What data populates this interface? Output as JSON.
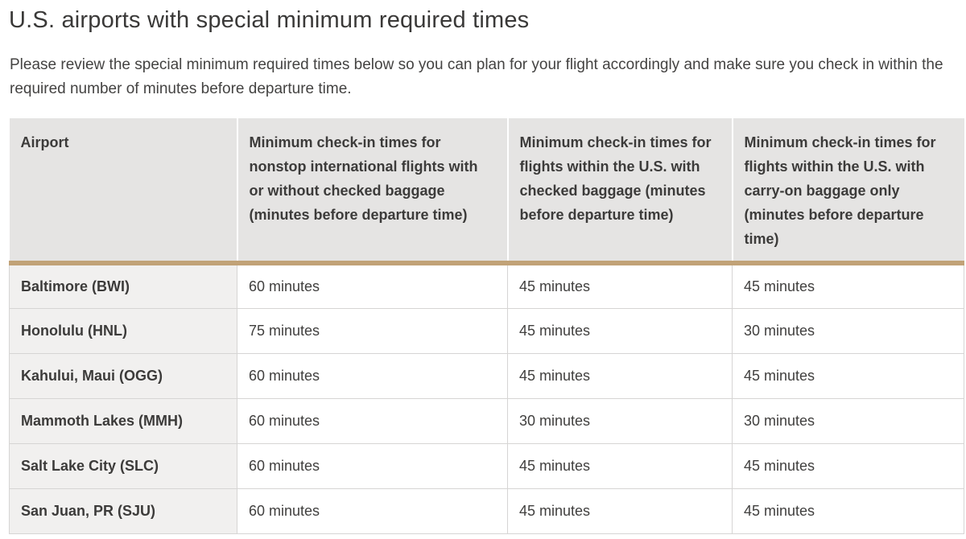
{
  "page": {
    "title": "U.S. airports with special minimum required times",
    "intro": "Please review the special minimum required times below so you can plan for your flight accordingly and make sure you check in within the required number of minutes before departure time."
  },
  "colors": {
    "header_bg": "#e5e4e3",
    "airport_column_bg": "#f1f0ef",
    "accent_bar": "#c1a277",
    "cell_border": "#d6d5d4",
    "text": "#3d3c3c"
  },
  "table": {
    "columns": [
      "Airport",
      "Minimum check-in times for nonstop international flights with or without checked baggage (minutes before departure time)",
      "Minimum check-in times for flights within the U.S. with checked baggage (minutes before departure time)",
      "Minimum check-in times for flights within the U.S. with carry-on baggage only (minutes before departure time)"
    ],
    "rows": [
      {
        "airport": "Baltimore (BWI)",
        "international": "60 minutes",
        "domestic_checked": "45 minutes",
        "domestic_carryon": "45 minutes"
      },
      {
        "airport": "Honolulu (HNL)",
        "international": "75 minutes",
        "domestic_checked": "45 minutes",
        "domestic_carryon": "30 minutes"
      },
      {
        "airport": "Kahului, Maui (OGG)",
        "international": "60 minutes",
        "domestic_checked": "45 minutes",
        "domestic_carryon": "45 minutes"
      },
      {
        "airport": "Mammoth Lakes (MMH)",
        "international": "60 minutes",
        "domestic_checked": "30 minutes",
        "domestic_carryon": "30 minutes"
      },
      {
        "airport": "Salt Lake City (SLC)",
        "international": "60 minutes",
        "domestic_checked": "45 minutes",
        "domestic_carryon": "45 minutes"
      },
      {
        "airport": "San Juan, PR (SJU)",
        "international": "60 minutes",
        "domestic_checked": "45 minutes",
        "domestic_carryon": "45 minutes"
      }
    ]
  }
}
